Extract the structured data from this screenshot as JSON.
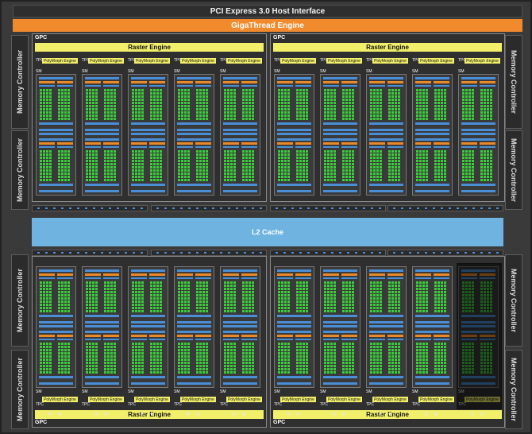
{
  "chip": {
    "host_interface": "PCI Express 3.0 Host Interface",
    "scheduler": "GigaThread Engine",
    "cache": "L2 Cache",
    "memory_controller_label": "Memory Controller",
    "gpc_label": "GPC",
    "raster_engine_label": "Raster Engine",
    "tpc_label": "TPC",
    "polymorph_label": "PolyMorph Engine",
    "sm_label": "SM",
    "colors": {
      "background": "#3a3a3a",
      "giga_engine": "#f08a2c",
      "raster_engine": "#f2f06b",
      "l2_cache": "#6fb3e0",
      "cuda_core": "#3ccd3c",
      "register_file": "#4a8fd6",
      "scheduler_unit": "#e98a2a"
    },
    "gpcs": [
      {
        "position": "top-left"
      },
      {
        "position": "top-right"
      },
      {
        "position": "bottom-left"
      },
      {
        "position": "bottom-right",
        "disabled_tpc_index": 4
      }
    ],
    "tpcs_per_gpc": 5,
    "memory_controllers": [
      {
        "side": "left"
      },
      {
        "side": "left"
      },
      {
        "side": "left"
      },
      {
        "side": "left"
      },
      {
        "side": "right"
      },
      {
        "side": "right"
      },
      {
        "side": "right"
      },
      {
        "side": "right"
      }
    ]
  }
}
